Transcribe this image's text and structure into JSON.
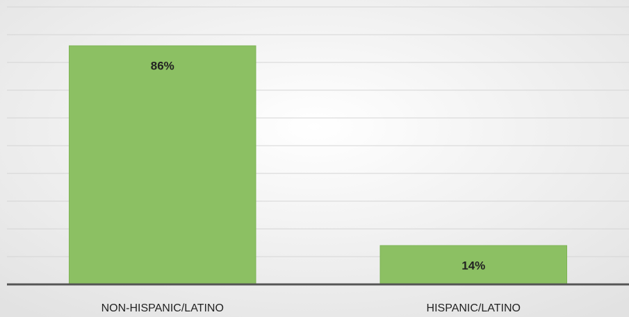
{
  "chart_data": {
    "type": "bar",
    "categories": [
      "NON-HISPANIC/LATINO",
      "HISPANIC/LATINO"
    ],
    "values": [
      86,
      14
    ],
    "value_labels": [
      "86%",
      "14%"
    ],
    "color": "#8cc063",
    "ylim": [
      0,
      100
    ],
    "yticks": [
      0,
      10,
      20,
      30,
      40,
      50,
      60,
      70,
      80,
      90,
      100
    ],
    "grid": true
  }
}
